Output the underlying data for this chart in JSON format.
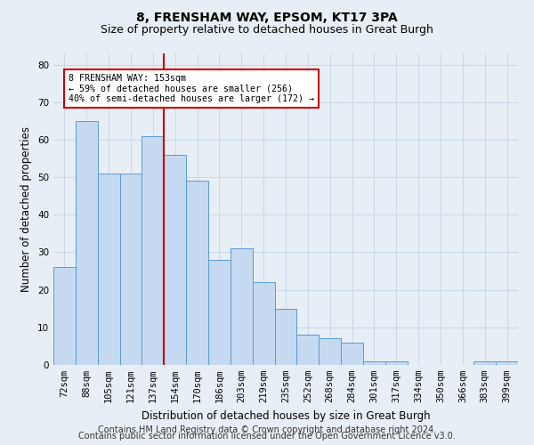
{
  "title": "8, FRENSHAM WAY, EPSOM, KT17 3PA",
  "subtitle": "Size of property relative to detached houses in Great Burgh",
  "xlabel": "Distribution of detached houses by size in Great Burgh",
  "ylabel": "Number of detached properties",
  "categories": [
    "72sqm",
    "88sqm",
    "105sqm",
    "121sqm",
    "137sqm",
    "154sqm",
    "170sqm",
    "186sqm",
    "203sqm",
    "219sqm",
    "235sqm",
    "252sqm",
    "268sqm",
    "284sqm",
    "301sqm",
    "317sqm",
    "334sqm",
    "350sqm",
    "366sqm",
    "383sqm",
    "399sqm"
  ],
  "values": [
    26,
    65,
    51,
    51,
    61,
    56,
    49,
    28,
    31,
    22,
    15,
    8,
    7,
    6,
    1,
    1,
    0,
    0,
    0,
    1,
    1
  ],
  "bar_color": "#c5d9f0",
  "bar_edge_color": "#5b9bd5",
  "annotation_text": "8 FRENSHAM WAY: 153sqm\n← 59% of detached houses are smaller (256)\n40% of semi-detached houses are larger (172) →",
  "annotation_box_color": "#ffffff",
  "annotation_box_edge_color": "#cc0000",
  "property_line_color": "#cc0000",
  "grid_color": "#c8d8e8",
  "background_color": "#e8eef5",
  "footer1": "Contains HM Land Registry data © Crown copyright and database right 2024.",
  "footer2": "Contains public sector information licensed under the Open Government Licence v3.0.",
  "ylim": [
    0,
    83
  ],
  "yticks": [
    0,
    10,
    20,
    30,
    40,
    50,
    60,
    70,
    80
  ],
  "title_fontsize": 10,
  "subtitle_fontsize": 9,
  "axis_label_fontsize": 8.5,
  "tick_fontsize": 7.5,
  "footer_fontsize": 7
}
